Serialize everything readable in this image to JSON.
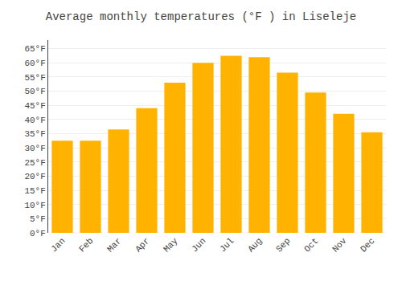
{
  "chart_data": {
    "type": "bar",
    "title": "Average monthly temperatures (°F ) in Liseleje",
    "categories": [
      "Jan",
      "Feb",
      "Mar",
      "Apr",
      "May",
      "Jun",
      "Jul",
      "Aug",
      "Sep",
      "Oct",
      "Nov",
      "Dec"
    ],
    "values": [
      32.5,
      32.5,
      36.5,
      44,
      53,
      60,
      62.5,
      62,
      56.5,
      49.5,
      42,
      35.5
    ],
    "color": "#FFB300",
    "ylim": [
      0,
      68
    ],
    "yticks": [
      {
        "value": 0,
        "label": "0°F"
      },
      {
        "value": 5,
        "label": "5°F"
      },
      {
        "value": 10,
        "label": "10°F"
      },
      {
        "value": 15,
        "label": "15°F"
      },
      {
        "value": 20,
        "label": "20°F"
      },
      {
        "value": 25,
        "label": "25°F"
      },
      {
        "value": 30,
        "label": "30°F"
      },
      {
        "value": 35,
        "label": "35°F"
      },
      {
        "value": 40,
        "label": "40°F"
      },
      {
        "value": 45,
        "label": "45°F"
      },
      {
        "value": 50,
        "label": "50°F"
      },
      {
        "value": 55,
        "label": "55°F"
      },
      {
        "value": 60,
        "label": "60°F"
      },
      {
        "value": 65,
        "label": "65°F"
      }
    ],
    "grid": true
  }
}
